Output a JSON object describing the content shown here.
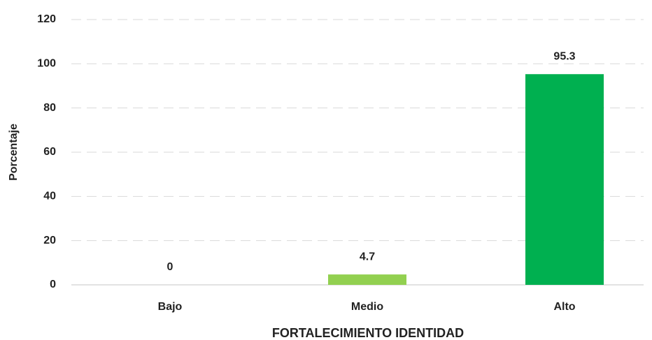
{
  "chart_data": {
    "type": "bar",
    "categories": [
      "Bajo",
      "Medio",
      "Alto"
    ],
    "values": [
      0,
      4.7,
      95.3
    ],
    "colors": [
      "#00b050",
      "#92d050",
      "#00b050"
    ],
    "ylim": [
      0,
      120
    ],
    "yticks": [
      0,
      20,
      40,
      60,
      80,
      100,
      120
    ],
    "xlabel": "FORTALECIMIENTO IDENTIDAD",
    "ylabel": "Porcentaje",
    "grid": true
  }
}
